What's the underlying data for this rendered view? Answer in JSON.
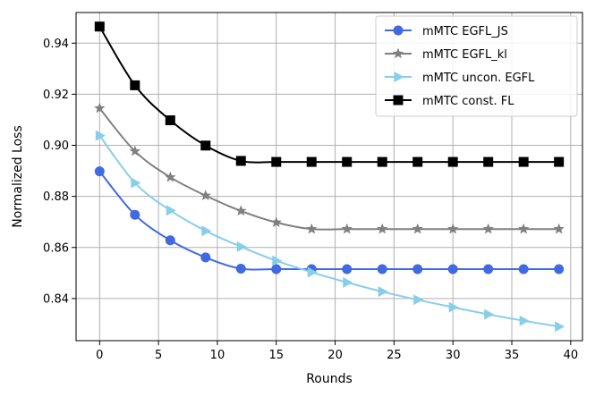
{
  "chart_data": {
    "type": "line",
    "title": "",
    "xlabel": "Rounds",
    "ylabel": "Normalized Loss",
    "xlim": [
      -2,
      41
    ],
    "ylim": [
      0.8235,
      0.952
    ],
    "grid": true,
    "legend_position": "top-right",
    "x_ticks": [
      0,
      5,
      10,
      15,
      20,
      25,
      30,
      35,
      40
    ],
    "x_tick_labels": [
      "0",
      "5",
      "10",
      "15",
      "20",
      "25",
      "30",
      "35",
      "40"
    ],
    "y_ticks": [
      0.84,
      0.86,
      0.88,
      0.9,
      0.92,
      0.94
    ],
    "y_tick_labels": [
      "0.84",
      "0.86",
      "0.88",
      "0.90",
      "0.92",
      "0.94"
    ],
    "marker_x": [
      0,
      3,
      6,
      9,
      12,
      15,
      18,
      21,
      24,
      27,
      30,
      33,
      36,
      39
    ],
    "series": [
      {
        "name": "mMTC EGFL_JS",
        "color": "#4169e1",
        "marker": "circle",
        "values": [
          0.8898,
          0.8728,
          0.8628,
          0.8561,
          0.8517,
          0.8515,
          0.8515,
          0.8515,
          0.8515,
          0.8515,
          0.8515,
          0.8515,
          0.8515,
          0.8515
        ]
      },
      {
        "name": "mMTC EGFL_kl",
        "color": "#808080",
        "marker": "star",
        "values": [
          0.9145,
          0.8977,
          0.8875,
          0.8803,
          0.8743,
          0.8698,
          0.8672,
          0.8672,
          0.8672,
          0.8672,
          0.8672,
          0.8672,
          0.8672,
          0.8672
        ]
      },
      {
        "name": "mMTC uncon. EGFL",
        "color": "#87ceeb",
        "marker": "triangle-right",
        "values": [
          0.9038,
          0.8853,
          0.8745,
          0.8665,
          0.8603,
          0.8548,
          0.8503,
          0.8463,
          0.8427,
          0.8395,
          0.8366,
          0.8338,
          0.8313,
          0.829
        ]
      },
      {
        "name": "mMTC const. FL",
        "color": "#000000",
        "marker": "square",
        "values": [
          0.9465,
          0.9235,
          0.9098,
          0.8999,
          0.8939,
          0.8935,
          0.8935,
          0.8935,
          0.8935,
          0.8935,
          0.8935,
          0.8935,
          0.8935,
          0.8935
        ]
      }
    ]
  }
}
